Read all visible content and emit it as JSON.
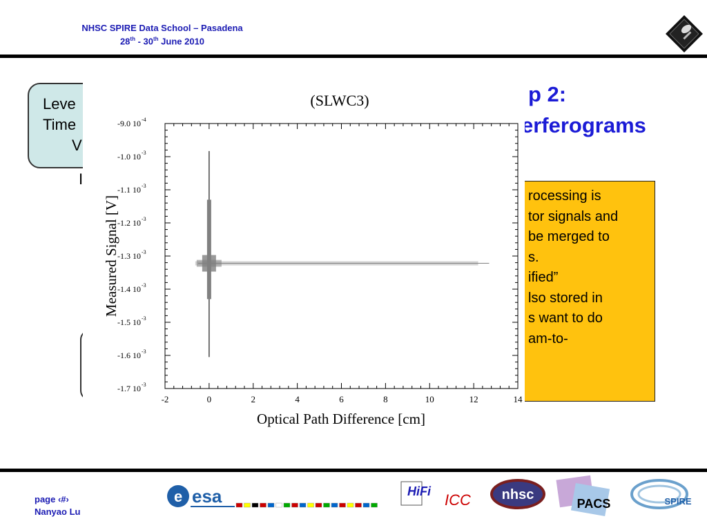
{
  "header": {
    "title_line1": "NHSC SPIRE Data School – Pasadena",
    "date_start": "28",
    "date_start_sup": "th",
    "date_sep": " - 30",
    "date_end_sup": "th",
    "date_rest": " June 2010"
  },
  "slide": {
    "title_line1": "p 2:",
    "title_line2": "erferograms",
    "bubble_lines": [
      "Leve",
      "Time",
      "V("
    ],
    "fragment_text": "I",
    "bullet_lines": [
      "rocessing is",
      "tor signals and",
      " be merged to",
      "s.",
      "",
      "ified”",
      "lso stored in",
      "s want to do",
      "am-to-"
    ]
  },
  "chart_data": {
    "type": "line",
    "title": "(SLWC3)",
    "xlabel": "Optical Path Difference [cm]",
    "ylabel": "Measured Signal [V]",
    "xlim": [
      -2,
      14
    ],
    "ylim": [
      -0.0017,
      -0.0009
    ],
    "x_ticks": [
      "-2",
      "0",
      "2",
      "4",
      "6",
      "8",
      "10",
      "12",
      "14"
    ],
    "y_ticks": [
      {
        "mant": "-9.0 10",
        "exp": "-4"
      },
      {
        "mant": "-1.0 10",
        "exp": "-3"
      },
      {
        "mant": "-1.1 10",
        "exp": "-3"
      },
      {
        "mant": "-1.2 10",
        "exp": "-3"
      },
      {
        "mant": "-1.3 10",
        "exp": "-3"
      },
      {
        "mant": "-1.4 10",
        "exp": "-3"
      },
      {
        "mant": "-1.5 10",
        "exp": "-3"
      },
      {
        "mant": "-1.6 10",
        "exp": "-3"
      },
      {
        "mant": "-1.7 10",
        "exp": "-3"
      }
    ],
    "grid": false,
    "series": [
      {
        "baseline": -0.001322,
        "x_start": -0.5,
        "x_end": 12.7,
        "peak_x": 0.0,
        "peak_max": -0.000983,
        "peak_min": -0.001605,
        "color": "#808080"
      }
    ]
  },
  "footer": {
    "page_label": "page ‹#›",
    "author": "Nanyao Lu",
    "logos": [
      "esa",
      "HiFi",
      "ICC",
      "nhsc",
      "PACS",
      "SPIRE"
    ]
  }
}
